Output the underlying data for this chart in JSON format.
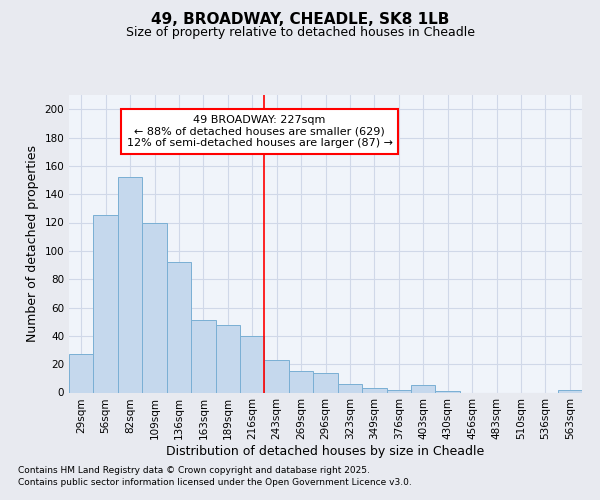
{
  "title": "49, BROADWAY, CHEADLE, SK8 1LB",
  "subtitle": "Size of property relative to detached houses in Cheadle",
  "xlabel": "Distribution of detached houses by size in Cheadle",
  "ylabel": "Number of detached properties",
  "categories": [
    "29sqm",
    "56sqm",
    "82sqm",
    "109sqm",
    "136sqm",
    "163sqm",
    "189sqm",
    "216sqm",
    "243sqm",
    "269sqm",
    "296sqm",
    "323sqm",
    "349sqm",
    "376sqm",
    "403sqm",
    "430sqm",
    "456sqm",
    "483sqm",
    "510sqm",
    "536sqm",
    "563sqm"
  ],
  "values": [
    27,
    125,
    152,
    120,
    92,
    51,
    48,
    40,
    23,
    15,
    14,
    6,
    3,
    2,
    5,
    1,
    0,
    0,
    0,
    0,
    2
  ],
  "bar_color": "#c5d8ed",
  "bar_edge_color": "#7aafd4",
  "annotation_line1": "49 BROADWAY: 227sqm",
  "annotation_line2": "← 88% of detached houses are smaller (629)",
  "annotation_line3": "12% of semi-detached houses are larger (87) →",
  "property_line_x": 7.5,
  "footer_line1": "Contains HM Land Registry data © Crown copyright and database right 2025.",
  "footer_line2": "Contains public sector information licensed under the Open Government Licence v3.0.",
  "title_fontsize": 11,
  "subtitle_fontsize": 9,
  "axis_label_fontsize": 9,
  "tick_fontsize": 7.5,
  "annotation_fontsize": 8,
  "footer_fontsize": 6.5,
  "ylim": [
    0,
    210
  ],
  "yticks": [
    0,
    20,
    40,
    60,
    80,
    100,
    120,
    140,
    160,
    180,
    200
  ],
  "grid_color": "#d0d8e8",
  "background_color": "#e8eaf0",
  "plot_bg_color": "#f0f4fa"
}
